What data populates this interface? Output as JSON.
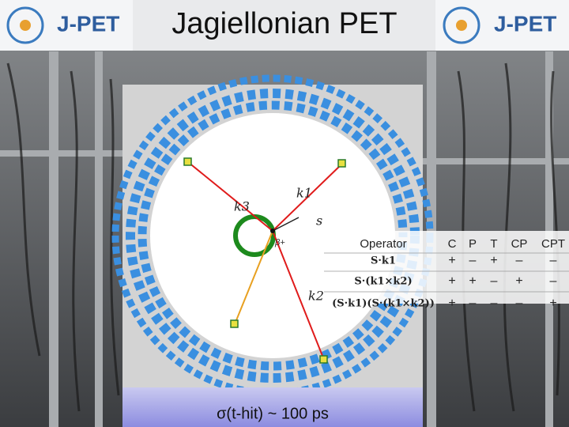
{
  "header": {
    "logo_left": "J-PET",
    "title": "Jagiellonian PET",
    "logo_right": "J-PET"
  },
  "diagram": {
    "labels": {
      "k1": "k1",
      "k2": "k2",
      "k3": "k3",
      "s": "s",
      "beta": "β+"
    }
  },
  "table": {
    "header": [
      "Operator",
      "C",
      "P",
      "T",
      "CP",
      "CPT"
    ],
    "rows": [
      [
        "S·k1",
        "+",
        "–",
        "+",
        "–",
        "–"
      ],
      [
        "S·(k1×k2)",
        "+",
        "+",
        "–",
        "+",
        "–"
      ],
      [
        "(S·k1)(S·(k1×k2))",
        "+",
        "–",
        "–",
        "–",
        "+"
      ]
    ]
  },
  "caption": "σ(t-hit) ~ 100 ps"
}
